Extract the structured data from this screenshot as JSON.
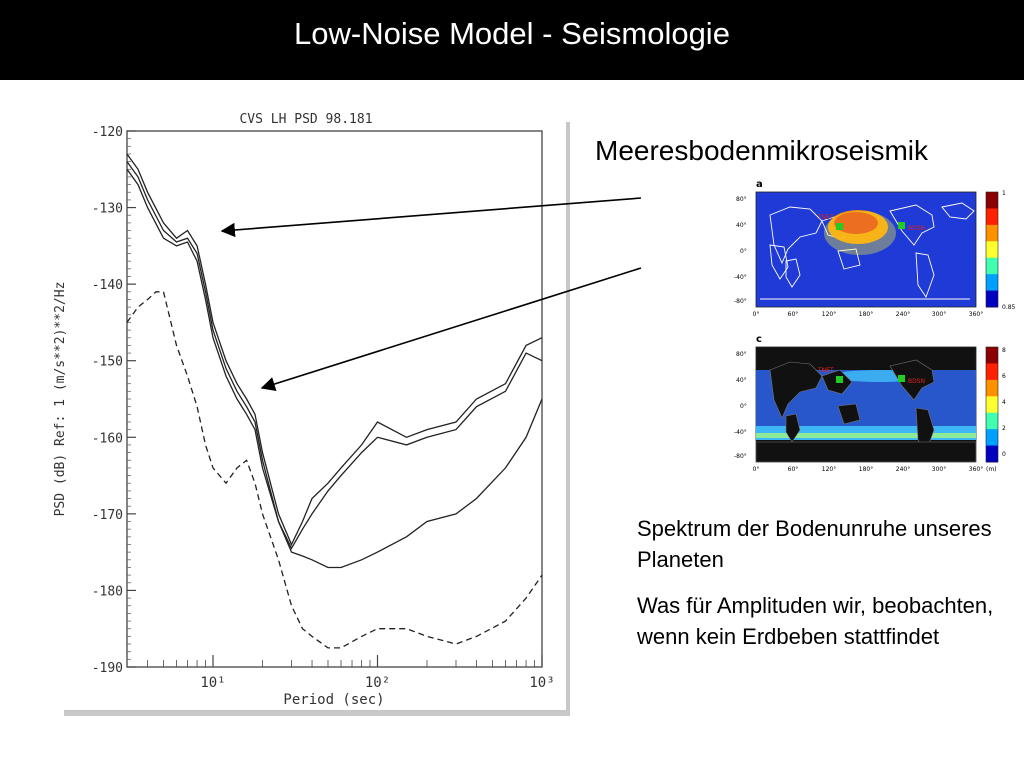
{
  "slide": {
    "title": "Low-Noise Model - Seismologie",
    "map_heading": "Meeresbodenmikroseismik",
    "note_1": "Spektrum der Bodenunruhe unseres Planeten",
    "note_2": "Was für Amplituden wir, beobachten, wenn kein Erdbeben stattfindet"
  },
  "chart_data": {
    "type": "line",
    "title": "CVS LH PSD 98.181",
    "xlabel": "Period (sec)",
    "ylabel": "PSD (dB) Ref: 1 (m/s**2)**2/Hz",
    "xscale": "log",
    "xlim": [
      3,
      1000
    ],
    "ylim": [
      -190,
      -120
    ],
    "yticks": [
      -120,
      -130,
      -140,
      -150,
      -160,
      -170,
      -180,
      -190
    ],
    "xtick_labels": [
      {
        "value": 10,
        "label": "10¹"
      },
      {
        "value": 100,
        "label": "10²"
      },
      {
        "value": 1000,
        "label": "10³"
      }
    ],
    "grid": false,
    "series": [
      {
        "style": "solid",
        "x": [
          3.0,
          3.5,
          4.0,
          5.0,
          6.0,
          7.0,
          8.0,
          9.0,
          10.0,
          12.0,
          14.0,
          16.0,
          18.0,
          20.0,
          25.0,
          30.0,
          35.0,
          40.0,
          50.0,
          60.0,
          80.0,
          100.0,
          150.0,
          200.0,
          300.0,
          400.0,
          600.0,
          800.0,
          1000.0
        ],
        "y": [
          -123,
          -125,
          -128,
          -132,
          -134,
          -133,
          -135,
          -140,
          -145,
          -150,
          -153,
          -155,
          -157,
          -162,
          -170,
          -174,
          -171,
          -168,
          -166,
          -164,
          -161,
          -158,
          -160,
          -159,
          -158,
          -155,
          -153,
          -148,
          -147
        ]
      },
      {
        "style": "solid",
        "x": [
          3.0,
          3.5,
          4.0,
          5.0,
          6.0,
          7.0,
          8.0,
          9.0,
          10.0,
          12.0,
          14.0,
          16.0,
          18.0,
          20.0,
          25.0,
          30.0,
          35.0,
          40.0,
          50.0,
          60.0,
          80.0,
          100.0,
          150.0,
          200.0,
          300.0,
          400.0,
          600.0,
          800.0,
          1000.0
        ],
        "y": [
          -124,
          -126,
          -129,
          -133,
          -134.5,
          -134,
          -136,
          -141,
          -146,
          -151,
          -154,
          -156,
          -158,
          -163,
          -171,
          -174.5,
          -172,
          -170,
          -167,
          -165,
          -162,
          -160,
          -161,
          -160,
          -159,
          -156,
          -154,
          -149,
          -150
        ]
      },
      {
        "style": "solid",
        "x": [
          3.0,
          3.5,
          4.0,
          5.0,
          6.0,
          7.0,
          8.0,
          9.0,
          10.0,
          12.0,
          14.0,
          16.0,
          18.0,
          20.0,
          25.0,
          30.0,
          35.0,
          40.0,
          50.0,
          60.0,
          80.0,
          100.0,
          150.0,
          200.0,
          300.0,
          400.0,
          600.0,
          800.0,
          1000.0
        ],
        "y": [
          -125,
          -127,
          -130,
          -134,
          -135,
          -134.5,
          -137,
          -142,
          -147,
          -152,
          -155,
          -157,
          -159,
          -164,
          -171,
          -175,
          -175.5,
          -176,
          -177,
          -177,
          -176,
          -175,
          -173,
          -171,
          -170,
          -168,
          -164,
          -160,
          -155
        ]
      },
      {
        "style": "dashed",
        "x": [
          3.0,
          3.5,
          4.0,
          4.5,
          5.0,
          6.0,
          7.0,
          8.0,
          9.0,
          10.0,
          12.0,
          14.0,
          16.0,
          18.0,
          20.0,
          25.0,
          30.0,
          35.0,
          40.0,
          50.0,
          60.0,
          80.0,
          100.0,
          150.0,
          200.0,
          300.0,
          400.0,
          600.0,
          800.0,
          1000.0
        ],
        "y": [
          -145,
          -143,
          -142,
          -141,
          -141,
          -148,
          -152,
          -156,
          -161,
          -164,
          -166,
          -164,
          -163,
          -166,
          -170,
          -176,
          -182,
          -185,
          -186,
          -187.5,
          -187.5,
          -186,
          -185,
          -185,
          -186,
          -187,
          -186,
          -184,
          -181,
          -178
        ]
      }
    ],
    "annotations": [
      "arrow to the primary microseism peak near -133 dB at ~11 s",
      "arrow to the secondary microseism shoulder near -153 dB at ~19 s"
    ]
  },
  "maps": [
    {
      "panel_label": "a",
      "lat_labels": [
        "80°",
        "40°",
        "0°",
        "-40°",
        "-80°"
      ],
      "lon_labels": [
        "0°",
        "60°",
        "120°",
        "180°",
        "240°",
        "300°",
        "360°"
      ],
      "station_labels": [
        "TNET",
        "BDSN"
      ],
      "colorbar_labels": [
        "1",
        "0.85"
      ],
      "colorbar_colors": [
        "#8b0000",
        "#ff2000",
        "#ff9000",
        "#ffff30",
        "#40ffb0",
        "#00a0ff",
        "#0000c0"
      ]
    },
    {
      "panel_label": "c",
      "lat_labels": [
        "80°",
        "40°",
        "0°",
        "-40°",
        "-80°"
      ],
      "lon_labels": [
        "0°",
        "60°",
        "120°",
        "180°",
        "240°",
        "300°",
        "360°"
      ],
      "station_labels": [
        "TNET",
        "BDSN"
      ],
      "colorbar_labels": [
        "8",
        "6",
        "4",
        "2",
        "0",
        "(m)"
      ],
      "colorbar_colors": [
        "#8b0000",
        "#ff2000",
        "#ff9000",
        "#ffff30",
        "#40ffb0",
        "#00a0ff",
        "#0000c0"
      ]
    }
  ],
  "colors": {
    "title_bar": "#000000",
    "title_text": "#ffffff",
    "plot_line": "#222222",
    "map_ocean": "#1f3ad6",
    "map_land_dark": "#111111",
    "map_hotspot": "#e2231a",
    "station_marker": "#22cc22"
  }
}
